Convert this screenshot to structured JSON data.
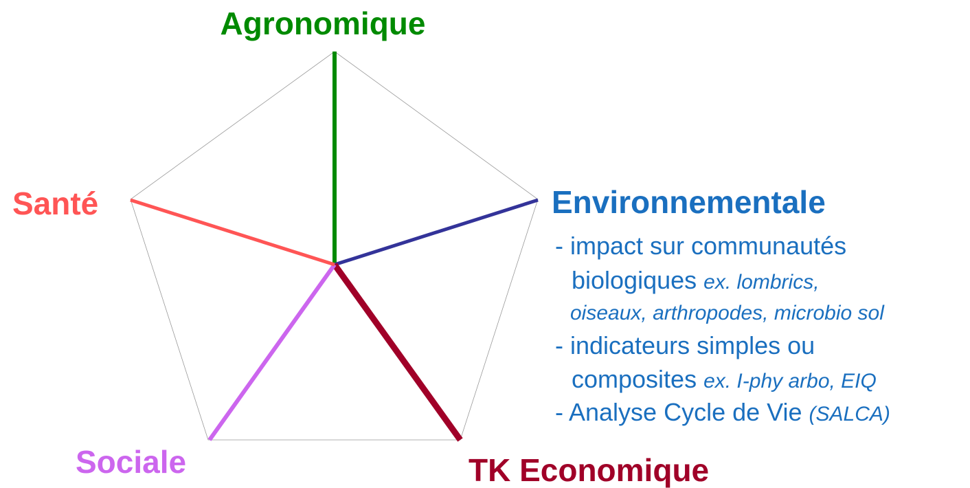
{
  "axes": [
    {
      "label": "Agronomique"
    },
    {
      "label": "Environnementale"
    },
    {
      "label": "TK Economique"
    },
    {
      "label": "Sociale"
    },
    {
      "label": "Santé"
    }
  ],
  "details": [
    {
      "text": "- impact sur communautés"
    },
    {
      "text": "biologiques",
      "example": "ex. lombrics,"
    },
    {
      "example": "oiseaux, arthropodes, microbio sol"
    },
    {
      "text": "- indicateurs simples ou"
    },
    {
      "text": "composites",
      "example": "ex. I-phy arbo, EIQ"
    },
    {
      "text": "- Analyse Cycle de Vie",
      "example": "(SALCA)"
    }
  ]
}
